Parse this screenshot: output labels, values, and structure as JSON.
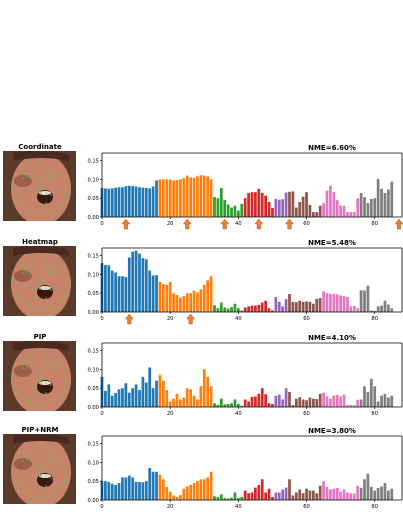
{
  "colors": {
    "blue": "#1f77b4",
    "orange": "#ff7f0e",
    "green": "#2ca02c",
    "red": "#d62728",
    "purple": "#9467bd",
    "brown": "#8c564b",
    "pink": "#e377c2",
    "gray": "#7f7f7f",
    "arrow": "#ed7d31"
  },
  "chart_data": [
    {
      "type": "bar",
      "title": "NME=6.60%",
      "method": "Coordinate",
      "xlim": [
        0,
        88
      ],
      "ylim": [
        0,
        0.17
      ],
      "xticks": [
        0,
        20,
        40,
        60,
        80
      ],
      "yticks": [
        "0.00",
        "0.05",
        "0.10",
        "0.15"
      ],
      "grid": false,
      "groups": [
        {
          "color": "blue",
          "start": 0
        },
        {
          "color": "orange",
          "start": 17
        },
        {
          "color": "green",
          "start": 33
        },
        {
          "color": "red",
          "start": 42
        },
        {
          "color": "purple",
          "start": 51
        },
        {
          "color": "brown",
          "start": 55
        },
        {
          "color": "pink",
          "start": 65
        },
        {
          "color": "gray",
          "start": 76
        }
      ],
      "values": [
        0.077,
        0.076,
        0.075,
        0.076,
        0.078,
        0.079,
        0.079,
        0.082,
        0.083,
        0.082,
        0.081,
        0.079,
        0.078,
        0.077,
        0.076,
        0.081,
        0.097,
        0.1,
        0.1,
        0.1,
        0.1,
        0.097,
        0.098,
        0.1,
        0.103,
        0.11,
        0.105,
        0.104,
        0.108,
        0.111,
        0.11,
        0.108,
        0.1,
        0.053,
        0.05,
        0.077,
        0.045,
        0.033,
        0.025,
        0.03,
        0.017,
        0.035,
        0.05,
        0.064,
        0.066,
        0.066,
        0.075,
        0.064,
        0.057,
        0.04,
        0.024,
        0.048,
        0.046,
        0.047,
        0.065,
        0.067,
        0.068,
        0.025,
        0.04,
        0.054,
        0.066,
        0.032,
        0.013,
        0.013,
        0.03,
        0.037,
        0.07,
        0.083,
        0.066,
        0.045,
        0.031,
        0.03,
        0.013,
        0.013,
        0.013,
        0.05,
        0.064,
        0.053,
        0.037,
        0.048,
        0.05,
        0.101,
        0.075,
        0.064,
        0.073,
        0.094
      ],
      "arrows": [
        7,
        25,
        36,
        46,
        55,
        88
      ]
    },
    {
      "type": "bar",
      "title": "NME=5.48%",
      "method": "Heatmap",
      "xlim": [
        0,
        88
      ],
      "ylim": [
        0,
        0.17
      ],
      "xticks": [
        0,
        20,
        40,
        60,
        80
      ],
      "yticks": [
        "0.00",
        "0.05",
        "0.10",
        "0.15"
      ],
      "grid": false,
      "groups": [
        {
          "color": "blue",
          "start": 0
        },
        {
          "color": "orange",
          "start": 17
        },
        {
          "color": "green",
          "start": 33
        },
        {
          "color": "red",
          "start": 42
        },
        {
          "color": "purple",
          "start": 51
        },
        {
          "color": "brown",
          "start": 55
        },
        {
          "color": "pink",
          "start": 65
        },
        {
          "color": "gray",
          "start": 76
        }
      ],
      "values": [
        0.13,
        0.125,
        0.124,
        0.11,
        0.105,
        0.095,
        0.095,
        0.093,
        0.145,
        0.16,
        0.163,
        0.155,
        0.143,
        0.14,
        0.11,
        0.097,
        0.098,
        0.08,
        0.074,
        0.072,
        0.08,
        0.05,
        0.045,
        0.038,
        0.042,
        0.05,
        0.05,
        0.057,
        0.052,
        0.06,
        0.072,
        0.084,
        0.095,
        0.018,
        0.01,
        0.025,
        0.012,
        0.009,
        0.013,
        0.022,
        0.01,
        0.004,
        0.012,
        0.015,
        0.017,
        0.017,
        0.019,
        0.025,
        0.03,
        0.01,
        0.004,
        0.04,
        0.027,
        0.015,
        0.034,
        0.048,
        0.027,
        0.026,
        0.03,
        0.027,
        0.028,
        0.027,
        0.022,
        0.035,
        0.037,
        0.055,
        0.05,
        0.048,
        0.048,
        0.047,
        0.044,
        0.042,
        0.04,
        0.015,
        0.016,
        0.01,
        0.058,
        0.057,
        0.07,
        0.004,
        0.003,
        0.015,
        0.017,
        0.03,
        0.02,
        0.01
      ],
      "arrows": [
        8,
        26
      ]
    },
    {
      "type": "bar",
      "title": "NME=4.10%",
      "method": "PIP",
      "xlim": [
        0,
        88
      ],
      "ylim": [
        0,
        0.17
      ],
      "xticks": [
        0,
        20,
        40,
        60,
        80
      ],
      "yticks": [
        "0.00",
        "0.05",
        "0.10",
        "0.15"
      ],
      "grid": false,
      "groups": [
        {
          "color": "blue",
          "start": 0
        },
        {
          "color": "orange",
          "start": 17
        },
        {
          "color": "green",
          "start": 33
        },
        {
          "color": "red",
          "start": 42
        },
        {
          "color": "purple",
          "start": 51
        },
        {
          "color": "brown",
          "start": 55
        },
        {
          "color": "pink",
          "start": 65
        },
        {
          "color": "gray",
          "start": 76
        }
      ],
      "values": [
        0.08,
        0.043,
        0.06,
        0.03,
        0.037,
        0.047,
        0.05,
        0.063,
        0.038,
        0.05,
        0.06,
        0.045,
        0.08,
        0.065,
        0.105,
        0.05,
        0.07,
        0.085,
        0.07,
        0.045,
        0.015,
        0.022,
        0.035,
        0.02,
        0.025,
        0.05,
        0.047,
        0.03,
        0.02,
        0.055,
        0.1,
        0.08,
        0.055,
        0.01,
        0.006,
        0.022,
        0.007,
        0.008,
        0.01,
        0.02,
        0.008,
        0.004,
        0.02,
        0.015,
        0.027,
        0.028,
        0.035,
        0.05,
        0.034,
        0.01,
        0.008,
        0.03,
        0.033,
        0.02,
        0.05,
        0.04,
        0.005,
        0.022,
        0.026,
        0.02,
        0.018,
        0.025,
        0.022,
        0.021,
        0.035,
        0.038,
        0.028,
        0.022,
        0.03,
        0.032,
        0.028,
        0.033,
        0.005,
        0.005,
        0.005,
        0.019,
        0.02,
        0.055,
        0.04,
        0.075,
        0.055,
        0.015,
        0.03,
        0.035,
        0.025,
        0.03
      ],
      "arrows": []
    },
    {
      "type": "bar",
      "title": "NME=3.80%",
      "method": "PIP+NRM",
      "xlim": [
        0,
        88
      ],
      "ylim": [
        0,
        0.17
      ],
      "xticks": [
        0,
        20,
        40,
        60,
        80
      ],
      "yticks": [
        "0.00",
        "0.05",
        "0.10",
        "0.15"
      ],
      "grid": false,
      "groups": [
        {
          "color": "blue",
          "start": 0
        },
        {
          "color": "orange",
          "start": 17
        },
        {
          "color": "green",
          "start": 33
        },
        {
          "color": "red",
          "start": 42
        },
        {
          "color": "purple",
          "start": 51
        },
        {
          "color": "brown",
          "start": 55
        },
        {
          "color": "pink",
          "start": 65
        },
        {
          "color": "gray",
          "start": 76
        }
      ],
      "values": [
        0.05,
        0.05,
        0.048,
        0.043,
        0.04,
        0.045,
        0.06,
        0.06,
        0.065,
        0.06,
        0.048,
        0.048,
        0.047,
        0.05,
        0.085,
        0.075,
        0.075,
        0.067,
        0.055,
        0.035,
        0.022,
        0.012,
        0.008,
        0.013,
        0.03,
        0.036,
        0.04,
        0.045,
        0.05,
        0.055,
        0.055,
        0.06,
        0.075,
        0.01,
        0.008,
        0.015,
        0.005,
        0.004,
        0.006,
        0.02,
        0.005,
        0.008,
        0.025,
        0.018,
        0.02,
        0.033,
        0.04,
        0.055,
        0.02,
        0.03,
        0.008,
        0.02,
        0.02,
        0.028,
        0.033,
        0.055,
        0.012,
        0.02,
        0.028,
        0.018,
        0.03,
        0.025,
        0.025,
        0.018,
        0.038,
        0.05,
        0.035,
        0.028,
        0.03,
        0.032,
        0.022,
        0.028,
        0.02,
        0.018,
        0.017,
        0.038,
        0.032,
        0.055,
        0.07,
        0.035,
        0.025,
        0.032,
        0.036,
        0.045,
        0.025,
        0.03
      ],
      "arrows": []
    }
  ]
}
